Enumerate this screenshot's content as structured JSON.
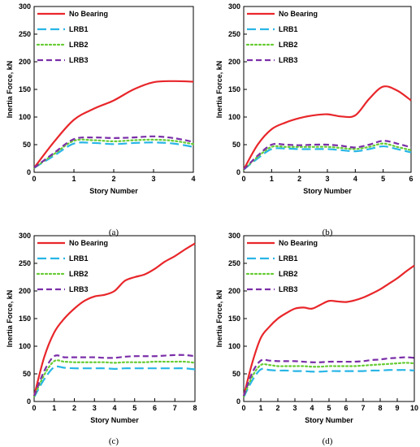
{
  "figure": {
    "captions": [
      "(a)",
      "(b)",
      "(c)",
      "(d)"
    ]
  },
  "chart_data": [
    {
      "type": "line",
      "xlabel": "Story Number",
      "ylabel": "Inertia Force, kN",
      "xlim": [
        0,
        4
      ],
      "xticks": [
        0,
        1,
        2,
        3,
        4
      ],
      "ylim": [
        0,
        300
      ],
      "yticks": [
        0,
        50,
        100,
        150,
        200,
        250,
        300
      ],
      "grid": false,
      "legend": "top-left",
      "series": [
        {
          "name": "No Bearing",
          "color": "#e8262a",
          "dash": "solid",
          "x": [
            0,
            0.5,
            1,
            1.5,
            2,
            2.5,
            3,
            3.5,
            4
          ],
          "y": [
            8,
            55,
            95,
            115,
            130,
            150,
            163,
            165,
            164
          ]
        },
        {
          "name": "LRB1",
          "color": "#29b6e6",
          "dash": "long-dash",
          "x": [
            0,
            0.5,
            1,
            1.5,
            2,
            2.5,
            3,
            3.5,
            4
          ],
          "y": [
            8,
            30,
            52,
            53,
            51,
            53,
            54,
            52,
            46
          ]
        },
        {
          "name": "LRB2",
          "color": "#66cc33",
          "dash": "dotted",
          "x": [
            0,
            0.5,
            1,
            1.5,
            2,
            2.5,
            3,
            3.5,
            4
          ],
          "y": [
            8,
            33,
            57,
            58,
            56,
            58,
            59,
            57,
            51
          ]
        },
        {
          "name": "LRB3",
          "color": "#7b2fa8",
          "dash": "dashed",
          "x": [
            0,
            0.5,
            1,
            1.5,
            2,
            2.5,
            3,
            3.5,
            4
          ],
          "y": [
            8,
            35,
            60,
            63,
            62,
            63,
            65,
            62,
            55
          ]
        }
      ]
    },
    {
      "type": "line",
      "xlabel": "Story Number",
      "ylabel": "Inertia Force, kN",
      "xlim": [
        0,
        6
      ],
      "xticks": [
        0,
        1,
        2,
        3,
        4,
        5,
        6
      ],
      "ylim": [
        0,
        300
      ],
      "yticks": [
        0,
        50,
        100,
        150,
        200,
        250,
        300
      ],
      "grid": false,
      "legend": "top-left",
      "series": [
        {
          "name": "No Bearing",
          "color": "#e8262a",
          "dash": "solid",
          "x": [
            0,
            0.5,
            1,
            1.5,
            2,
            2.5,
            3,
            3.5,
            4,
            4.5,
            5,
            5.5,
            6
          ],
          "y": [
            5,
            50,
            78,
            90,
            98,
            103,
            105,
            101,
            103,
            133,
            155,
            148,
            130
          ]
        },
        {
          "name": "LRB1",
          "color": "#29b6e6",
          "dash": "long-dash",
          "x": [
            0,
            0.5,
            1,
            1.5,
            2,
            2.5,
            3,
            3.5,
            4,
            4.5,
            5,
            5.5,
            6
          ],
          "y": [
            5,
            25,
            42,
            43,
            42,
            42,
            42,
            40,
            38,
            42,
            47,
            42,
            36
          ]
        },
        {
          "name": "LRB2",
          "color": "#66cc33",
          "dash": "dotted",
          "x": [
            0,
            0.5,
            1,
            1.5,
            2,
            2.5,
            3,
            3.5,
            4,
            4.5,
            5,
            5.5,
            6
          ],
          "y": [
            5,
            28,
            46,
            46,
            46,
            46,
            46,
            44,
            42,
            46,
            52,
            46,
            40
          ]
        },
        {
          "name": "LRB3",
          "color": "#7b2fa8",
          "dash": "dashed",
          "x": [
            0,
            0.5,
            1,
            1.5,
            2,
            2.5,
            3,
            3.5,
            4,
            4.5,
            5,
            5.5,
            6
          ],
          "y": [
            5,
            30,
            50,
            50,
            49,
            50,
            50,
            48,
            45,
            50,
            57,
            52,
            45
          ]
        }
      ]
    },
    {
      "type": "line",
      "xlabel": "Story Number",
      "ylabel": "Inertia Force, kN",
      "xlim": [
        0,
        8
      ],
      "xticks": [
        0,
        1,
        2,
        3,
        4,
        5,
        6,
        7,
        8
      ],
      "ylim": [
        0,
        300
      ],
      "yticks": [
        0,
        50,
        100,
        150,
        200,
        250,
        300
      ],
      "grid": false,
      "legend": "top-left",
      "series": [
        {
          "name": "No Bearing",
          "color": "#e8262a",
          "dash": "solid",
          "x": [
            0,
            0.5,
            1,
            1.5,
            2,
            2.5,
            3,
            3.5,
            4,
            4.5,
            5,
            5.5,
            6,
            6.5,
            7,
            7.5,
            8
          ],
          "y": [
            10,
            80,
            125,
            150,
            168,
            182,
            190,
            193,
            200,
            218,
            225,
            230,
            240,
            253,
            263,
            275,
            286
          ]
        },
        {
          "name": "LRB1",
          "color": "#29b6e6",
          "dash": "long-dash",
          "x": [
            0,
            0.5,
            1,
            1.5,
            2,
            2.5,
            3,
            3.5,
            4,
            4.5,
            5,
            5.5,
            6,
            6.5,
            7,
            7.5,
            8
          ],
          "y": [
            8,
            40,
            62,
            61,
            60,
            60,
            60,
            60,
            59,
            60,
            60,
            60,
            60,
            60,
            60,
            60,
            58
          ]
        },
        {
          "name": "LRB2",
          "color": "#66cc33",
          "dash": "dotted",
          "x": [
            0,
            0.5,
            1,
            1.5,
            2,
            2.5,
            3,
            3.5,
            4,
            4.5,
            5,
            5.5,
            6,
            6.5,
            7,
            7.5,
            8
          ],
          "y": [
            9,
            48,
            73,
            72,
            71,
            71,
            71,
            71,
            70,
            71,
            71,
            71,
            72,
            72,
            72,
            72,
            70
          ]
        },
        {
          "name": "LRB3",
          "color": "#7b2fa8",
          "dash": "dashed",
          "x": [
            0,
            0.5,
            1,
            1.5,
            2,
            2.5,
            3,
            3.5,
            4,
            4.5,
            5,
            5.5,
            6,
            6.5,
            7,
            7.5,
            8
          ],
          "y": [
            10,
            55,
            82,
            80,
            80,
            80,
            80,
            79,
            79,
            81,
            82,
            82,
            82,
            83,
            84,
            84,
            82
          ]
        }
      ]
    },
    {
      "type": "line",
      "xlabel": "Story Number",
      "ylabel": "Inertia Force, kN",
      "xlim": [
        0,
        10
      ],
      "xticks": [
        0,
        1,
        2,
        3,
        4,
        5,
        6,
        7,
        8,
        9,
        10
      ],
      "ylim": [
        0,
        300
      ],
      "yticks": [
        0,
        50,
        100,
        150,
        200,
        250,
        300
      ],
      "grid": false,
      "legend": "top-left",
      "series": [
        {
          "name": "No Bearing",
          "color": "#e8262a",
          "dash": "solid",
          "x": [
            0,
            0.5,
            1,
            1.5,
            2,
            2.5,
            3,
            3.5,
            4,
            4.5,
            5,
            5.5,
            6,
            6.5,
            7,
            7.5,
            8,
            8.5,
            9,
            9.5,
            10
          ],
          "y": [
            10,
            70,
            115,
            135,
            150,
            160,
            168,
            170,
            168,
            175,
            182,
            181,
            180,
            183,
            188,
            195,
            203,
            213,
            223,
            235,
            246
          ]
        },
        {
          "name": "LRB1",
          "color": "#29b6e6",
          "dash": "long-dash",
          "x": [
            0,
            0.5,
            1,
            1.5,
            2,
            2.5,
            3,
            3.5,
            4,
            4.5,
            5,
            5.5,
            6,
            6.5,
            7,
            7.5,
            8,
            8.5,
            9,
            9.5,
            10
          ],
          "y": [
            8,
            38,
            58,
            57,
            56,
            56,
            55,
            55,
            54,
            54,
            55,
            55,
            55,
            55,
            55,
            56,
            56,
            57,
            57,
            57,
            56
          ]
        },
        {
          "name": "LRB2",
          "color": "#66cc33",
          "dash": "dotted",
          "x": [
            0,
            0.5,
            1,
            1.5,
            2,
            2.5,
            3,
            3.5,
            4,
            4.5,
            5,
            5.5,
            6,
            6.5,
            7,
            7.5,
            8,
            8.5,
            9,
            9.5,
            10
          ],
          "y": [
            9,
            45,
            66,
            66,
            64,
            64,
            64,
            64,
            63,
            63,
            64,
            64,
            64,
            64,
            65,
            66,
            67,
            68,
            69,
            70,
            69
          ]
        },
        {
          "name": "LRB3",
          "color": "#7b2fa8",
          "dash": "dashed",
          "x": [
            0,
            0.5,
            1,
            1.5,
            2,
            2.5,
            3,
            3.5,
            4,
            4.5,
            5,
            5.5,
            6,
            6.5,
            7,
            7.5,
            8,
            8.5,
            9,
            9.5,
            10
          ],
          "y": [
            10,
            52,
            74,
            74,
            73,
            73,
            73,
            72,
            71,
            71,
            72,
            72,
            72,
            72,
            73,
            75,
            76,
            78,
            79,
            80,
            79
          ]
        }
      ]
    }
  ]
}
